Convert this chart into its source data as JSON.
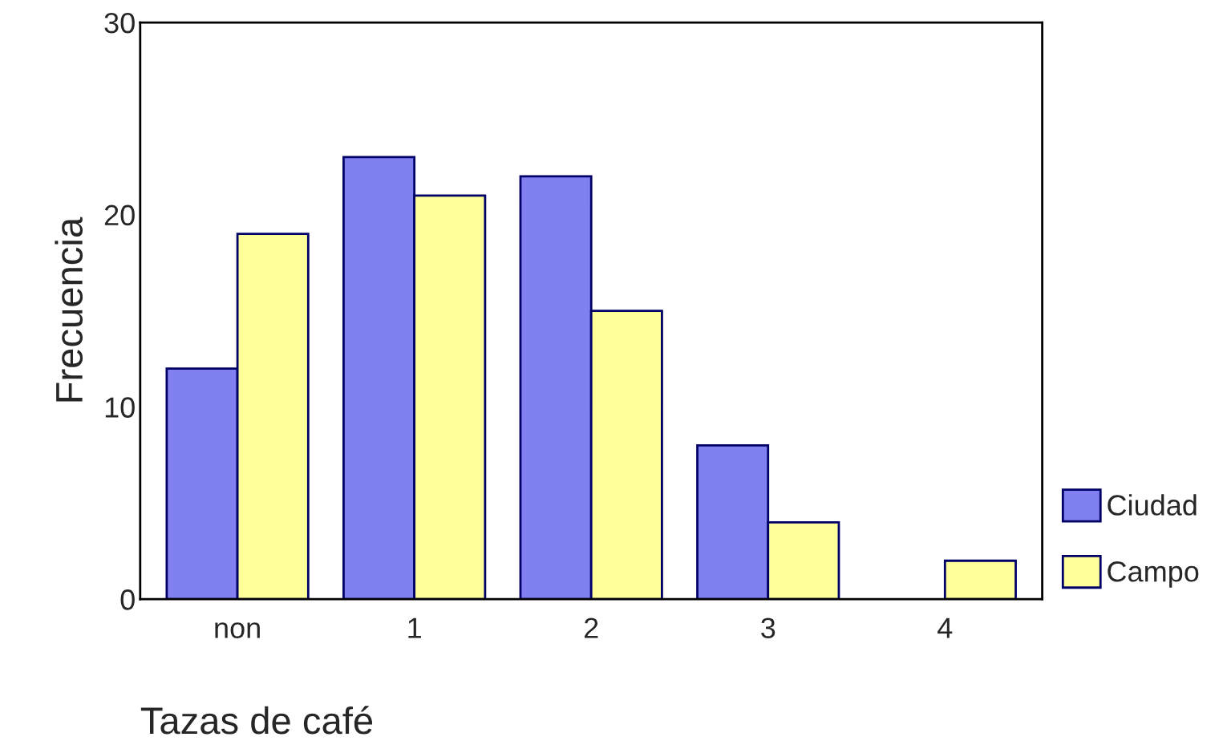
{
  "chart_data": {
    "type": "bar",
    "xlabel": "Tazas de café",
    "ylabel": "Frecuencia",
    "categories": [
      "non",
      "1",
      "2",
      "3",
      "4"
    ],
    "series": [
      {
        "name": "Ciudad",
        "color": "#8080f0",
        "values": [
          12,
          23,
          22,
          8,
          0
        ]
      },
      {
        "name": "Campo",
        "color": "#ffff99",
        "values": [
          19,
          21,
          15,
          4,
          2
        ]
      }
    ],
    "ylim": [
      0,
      30
    ],
    "yticks": [
      0,
      10,
      20,
      30
    ],
    "grid": false,
    "legend": "right"
  }
}
